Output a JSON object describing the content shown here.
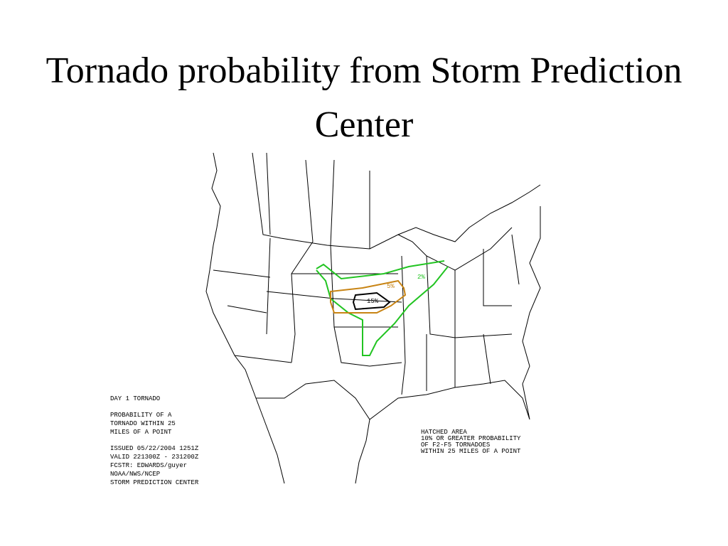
{
  "title": "Tornado probability from Storm Prediction Center",
  "map": {
    "contour_labels": [
      "2%",
      "5%",
      "15%"
    ],
    "left_legend": [
      "DAY 1 TORNADO",
      "PROBABILITY OF A",
      "TORNADO WITHIN 25",
      "MILES OF A POINT",
      "ISSUED 05/22/2004 1251Z",
      "VALID 221300Z - 231200Z",
      "FCSTR: EDWARDS/guyer",
      "NOAA/NWS/NCEP",
      "STORM PREDICTION CENTER"
    ],
    "right_legend": [
      "HATCHED AREA",
      "10% OR GREATER PROBABILITY",
      "OF F2-F5 TORNADOES",
      "WITHIN 25 MILES OF A POINT"
    ]
  }
}
